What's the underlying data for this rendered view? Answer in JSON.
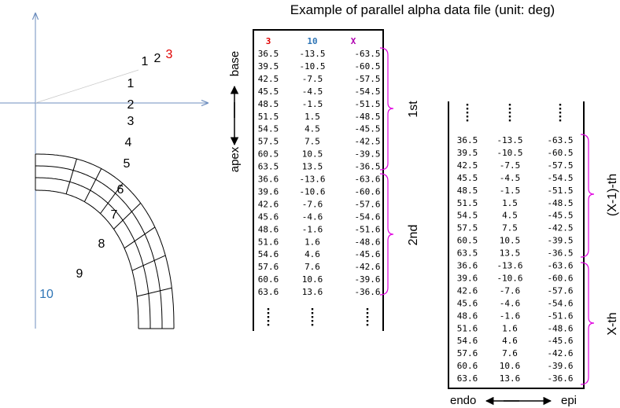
{
  "title": "Example of parallel alpha data file (unit: deg)",
  "mesh": {
    "layer_labels": [
      "1",
      "2",
      "3"
    ],
    "layer_label_colors": [
      "#000000",
      "#000000",
      "#e00000"
    ],
    "segment_labels": [
      "1",
      "2",
      "3",
      "4",
      "5",
      "6",
      "7",
      "8",
      "9",
      "10"
    ],
    "segment_label_colors": [
      "#000000",
      "#000000",
      "#000000",
      "#000000",
      "#000000",
      "#000000",
      "#000000",
      "#000000",
      "#000000",
      "#2e75b6"
    ],
    "axis_color": "#6f8fbf",
    "mesh_color": "#000000"
  },
  "table1": {
    "headers": [
      "3",
      "10",
      "X"
    ],
    "header_colors": [
      "#e00000",
      "#2e75b6",
      "#b000b0"
    ],
    "rows": [
      [
        "36.5",
        "-13.5",
        "-63.5"
      ],
      [
        "39.5",
        "-10.5",
        "-60.5"
      ],
      [
        "42.5",
        "-7.5",
        "-57.5"
      ],
      [
        "45.5",
        "-4.5",
        "-54.5"
      ],
      [
        "48.5",
        "-1.5",
        "-51.5"
      ],
      [
        "51.5",
        "1.5",
        "-48.5"
      ],
      [
        "54.5",
        "4.5",
        "-45.5"
      ],
      [
        "57.5",
        "7.5",
        "-42.5"
      ],
      [
        "60.5",
        "10.5",
        "-39.5"
      ],
      [
        "63.5",
        "13.5",
        "-36.5"
      ],
      [
        "36.6",
        "-13.6",
        "-63.6"
      ],
      [
        "39.6",
        "-10.6",
        "-60.6"
      ],
      [
        "42.6",
        "-7.6",
        "-57.6"
      ],
      [
        "45.6",
        "-4.6",
        "-54.6"
      ],
      [
        "48.6",
        "-1.6",
        "-51.6"
      ],
      [
        "51.6",
        "1.6",
        "-48.6"
      ],
      [
        "54.6",
        "4.6",
        "-45.6"
      ],
      [
        "57.6",
        "7.6",
        "-42.6"
      ],
      [
        "60.6",
        "10.6",
        "-39.6"
      ],
      [
        "63.6",
        "13.6",
        "-36.6"
      ]
    ],
    "group_labels": [
      "1st",
      "2nd"
    ],
    "axis_top": "base",
    "axis_bottom": "apex"
  },
  "table2": {
    "rows": [
      [
        "36.5",
        "-13.5",
        "-63.5"
      ],
      [
        "39.5",
        "-10.5",
        "-60.5"
      ],
      [
        "42.5",
        "-7.5",
        "-57.5"
      ],
      [
        "45.5",
        "-4.5",
        "-54.5"
      ],
      [
        "48.5",
        "-1.5",
        "-51.5"
      ],
      [
        "51.5",
        "1.5",
        "-48.5"
      ],
      [
        "54.5",
        "4.5",
        "-45.5"
      ],
      [
        "57.5",
        "7.5",
        "-42.5"
      ],
      [
        "60.5",
        "10.5",
        "-39.5"
      ],
      [
        "63.5",
        "13.5",
        "-36.5"
      ],
      [
        "36.6",
        "-13.6",
        "-63.6"
      ],
      [
        "39.6",
        "-10.6",
        "-60.6"
      ],
      [
        "42.6",
        "-7.6",
        "-57.6"
      ],
      [
        "45.6",
        "-4.6",
        "-54.6"
      ],
      [
        "48.6",
        "-1.6",
        "-51.6"
      ],
      [
        "51.6",
        "1.6",
        "-48.6"
      ],
      [
        "54.6",
        "4.6",
        "-45.6"
      ],
      [
        "57.6",
        "7.6",
        "-42.6"
      ],
      [
        "60.6",
        "10.6",
        "-39.6"
      ],
      [
        "63.6",
        "13.6",
        "-36.6"
      ]
    ],
    "group_labels": [
      "(X-1)-th",
      "X-th"
    ],
    "axis_left": "endo",
    "axis_right": "epi"
  },
  "bracket_color": "#e000e0"
}
